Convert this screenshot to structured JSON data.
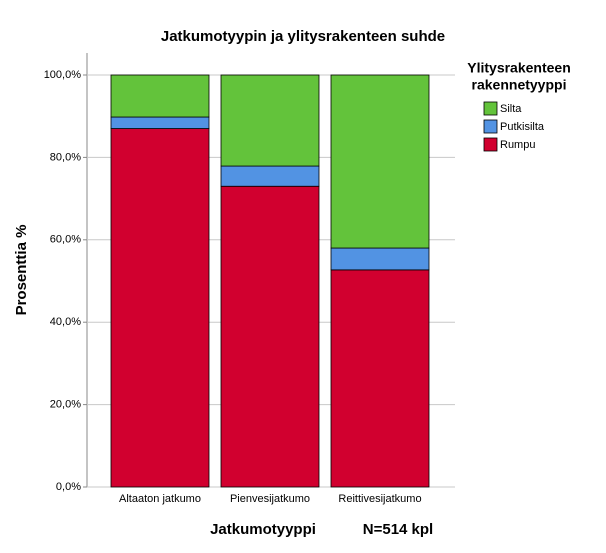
{
  "chart_data": {
    "type": "stacked_bar_percent",
    "title": "Jatkumotyypin ja ylitysrakenteen suhde",
    "x_label": "Jatkumotyyppi",
    "y_label": "Prosenttia %",
    "annotation": "N=514 kpl",
    "legend_title": [
      "Ylitysrakenteen",
      "rakennetyyppi"
    ],
    "legend_position": "right",
    "grid": true,
    "categories": [
      "Altaaton jatkumo",
      "Pienvesijatkumo",
      "Reittivesijatkumo"
    ],
    "series": [
      {
        "name": "Rumpu",
        "color": "#d1002f",
        "values": [
          87.0,
          73.0,
          52.7
        ]
      },
      {
        "name": "Putkisilta",
        "color": "#5293e3",
        "values": [
          2.8,
          4.9,
          5.3
        ]
      },
      {
        "name": "Silta",
        "color": "#63c33b",
        "values": [
          10.2,
          22.1,
          42.0
        ]
      }
    ],
    "ylim": [
      0,
      100
    ],
    "yticks": [
      {
        "value": 0,
        "label": "0,0%"
      },
      {
        "value": 20,
        "label": "20,0%"
      },
      {
        "value": 40,
        "label": "40,0%"
      },
      {
        "value": 60,
        "label": "60,0%"
      },
      {
        "value": 80,
        "label": "80,0%"
      },
      {
        "value": 100,
        "label": "100,0%"
      }
    ]
  }
}
